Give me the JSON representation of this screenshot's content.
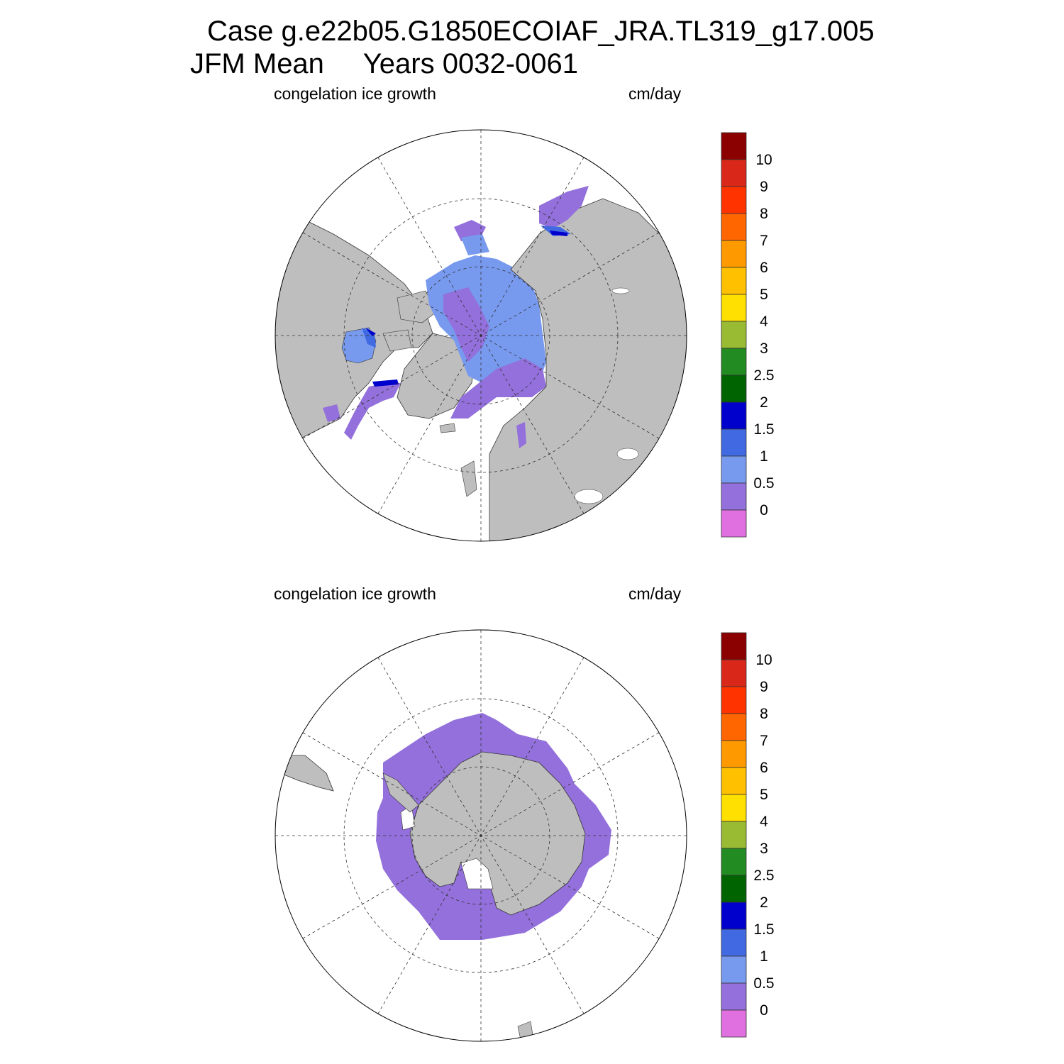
{
  "title": {
    "line1": "Case g.e22b05.G1850ECOIAF_JRA.TL319_g17.005",
    "line2": "JFM Mean     Years 0032-0061"
  },
  "panels": [
    {
      "id": "north",
      "variable_label": "congelation ice growth",
      "units_label": "cm/day"
    },
    {
      "id": "south",
      "variable_label": "congelation ice growth",
      "units_label": "cm/day"
    }
  ],
  "colorbar": {
    "labels": [
      "10",
      "9",
      "8",
      "7",
      "6",
      "5",
      "4",
      "3",
      "2.5",
      "2",
      "1.5",
      "1",
      "0.5",
      "0"
    ],
    "colors_top_to_bottom": [
      "#8b0000",
      "#d9281a",
      "#ff3300",
      "#ff6600",
      "#ff9900",
      "#ffc000",
      "#ffe000",
      "#99bb33",
      "#228b22",
      "#006400",
      "#0000cd",
      "#4169e1",
      "#7799ee",
      "#9370db",
      "#e070e0"
    ]
  },
  "colors": {
    "land": "#bebebe",
    "ocean_no_ice": "#ffffff",
    "ice_0_to_0_5": "#9370db",
    "ice_0_5_to_1": "#7799ee",
    "ice_1_to_1_5": "#4169e1",
    "ice_1_5_to_2": "#0000cd"
  }
}
